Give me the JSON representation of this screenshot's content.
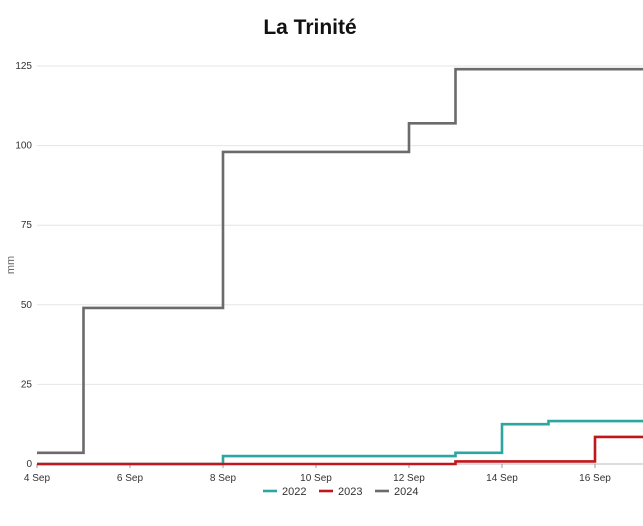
{
  "chart_data": {
    "type": "line",
    "title": "La Trinité",
    "xlabel": "",
    "ylabel": "mm",
    "x_ticks": [
      {
        "day": 4,
        "label": "4 Sep"
      },
      {
        "day": 6,
        "label": "6 Sep"
      },
      {
        "day": 8,
        "label": "8 Sep"
      },
      {
        "day": 10,
        "label": "10 Sep"
      },
      {
        "day": 12,
        "label": "12 Sep"
      },
      {
        "day": 14,
        "label": "14 Sep"
      },
      {
        "day": 16,
        "label": "16 Sep"
      }
    ],
    "y_ticks": [
      0,
      25,
      50,
      75,
      100,
      125
    ],
    "xlim": [
      4,
      17.8
    ],
    "ylim": [
      0,
      125
    ],
    "grid": true,
    "legend_position": "bottom",
    "series": [
      {
        "name": "2022",
        "color": "#2aa7a1",
        "step": true,
        "x": [
          4,
          8,
          13,
          14,
          15,
          17.8
        ],
        "y": [
          0,
          2.5,
          3.5,
          12.5,
          13.5,
          13.5
        ]
      },
      {
        "name": "2023",
        "color": "#c0171b",
        "step": true,
        "x": [
          4,
          13,
          16,
          17.8
        ],
        "y": [
          0,
          0.8,
          8.5,
          8.5
        ]
      },
      {
        "name": "2024",
        "color": "#6b6b6b",
        "step": true,
        "x": [
          4,
          5,
          8,
          12,
          13,
          17.8
        ],
        "y": [
          3.5,
          49,
          98,
          107,
          124,
          124
        ]
      }
    ]
  }
}
